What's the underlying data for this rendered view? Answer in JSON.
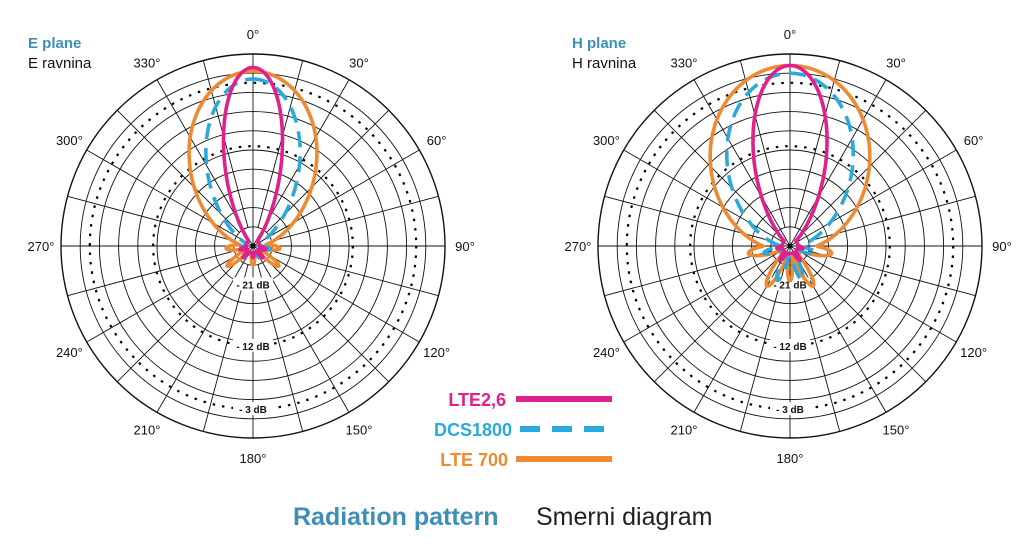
{
  "footer": {
    "title_en": "Radiation pattern",
    "title_sl": "Smerni diagram"
  },
  "colors": {
    "accent": "#3d8fb8",
    "lte26": "#e0208c",
    "dcs1800": "#2aa9dc",
    "lte700": "#ee8a32",
    "grid": "#111111",
    "text": "#111111"
  },
  "chart_data": [
    {
      "type": "polar",
      "title": "E plane",
      "subtitle": "E ravnina",
      "angle_ticks": [
        0,
        30,
        60,
        90,
        120,
        150,
        180,
        210,
        240,
        270,
        300,
        330
      ],
      "angle_labels": [
        "0°",
        "30°",
        "60°",
        "90°",
        "120°",
        "150°",
        "180°",
        "210°",
        "240°",
        "270°",
        "300°",
        "330°"
      ],
      "radial_rings": 10,
      "db_rings": [
        {
          "label": "- 3 dB",
          "level": 0.85,
          "dotted": true
        },
        {
          "label": "- 12 dB",
          "level": 0.52,
          "dotted": true
        },
        {
          "label": "- 21 dB",
          "level": 0.2,
          "dotted": false
        }
      ],
      "series": [
        {
          "name": "LTE 700",
          "style": "solid",
          "color": "#ee8a32",
          "main_lobe": {
            "peak": 0.91,
            "half_width_deg": 56,
            "exp": 1.0
          },
          "back_lobes": [
            {
              "dir": 95,
              "amp": 0.14,
              "w": 13
            },
            {
              "dir": 265,
              "amp": 0.14,
              "w": 13
            },
            {
              "dir": 128,
              "amp": 0.17,
              "w": 10
            },
            {
              "dir": 232,
              "amp": 0.17,
              "w": 10
            },
            {
              "dir": 180,
              "amp": 0.1,
              "w": 12
            }
          ],
          "floor": 0.045
        },
        {
          "name": "DCS1800",
          "style": "dashed",
          "color": "#2aa9dc",
          "main_lobe": {
            "peak": 0.87,
            "half_width_deg": 42,
            "exp": 1.0
          },
          "back_lobes": [
            {
              "dir": 100,
              "amp": 0.09,
              "w": 12
            },
            {
              "dir": 260,
              "amp": 0.09,
              "w": 12
            },
            {
              "dir": 150,
              "amp": 0.07,
              "w": 12
            },
            {
              "dir": 210,
              "amp": 0.07,
              "w": 12
            }
          ],
          "floor": 0.04
        },
        {
          "name": "LTE2,6",
          "style": "solid",
          "color": "#e0208c",
          "main_lobe": {
            "peak": 0.93,
            "half_width_deg": 24,
            "exp": 1.0
          },
          "back_lobes": [
            {
              "dir": 105,
              "amp": 0.07,
              "w": 12
            },
            {
              "dir": 255,
              "amp": 0.07,
              "w": 12
            },
            {
              "dir": 140,
              "amp": 0.08,
              "w": 10
            },
            {
              "dir": 220,
              "amp": 0.08,
              "w": 10
            },
            {
              "dir": 180,
              "amp": 0.06,
              "w": 10
            }
          ],
          "floor": 0.035
        }
      ]
    },
    {
      "type": "polar",
      "title": "H plane",
      "subtitle": "H ravnina",
      "angle_ticks": [
        0,
        30,
        60,
        90,
        120,
        150,
        180,
        210,
        240,
        270,
        300,
        330
      ],
      "angle_labels": [
        "0°",
        "30°",
        "60°",
        "90°",
        "120°",
        "150°",
        "180°",
        "210°",
        "240°",
        "270°",
        "300°",
        "330°"
      ],
      "radial_rings": 10,
      "db_rings": [
        {
          "label": "- 3 dB",
          "level": 0.85,
          "dotted": true
        },
        {
          "label": "- 12 dB",
          "level": 0.52,
          "dotted": true
        },
        {
          "label": "- 21 dB",
          "level": 0.2,
          "dotted": false
        }
      ],
      "series": [
        {
          "name": "LTE 700",
          "style": "solid",
          "color": "#ee8a32",
          "main_lobe": {
            "peak": 0.94,
            "half_width_deg": 70,
            "exp": 1.0
          },
          "back_lobes": [
            {
              "dir": 100,
              "amp": 0.22,
              "w": 14
            },
            {
              "dir": 260,
              "amp": 0.22,
              "w": 14
            },
            {
              "dir": 150,
              "amp": 0.24,
              "w": 12
            },
            {
              "dir": 210,
              "amp": 0.24,
              "w": 12
            },
            {
              "dir": 180,
              "amp": 0.18,
              "w": 10
            }
          ],
          "floor": 0.06
        },
        {
          "name": "DCS1800",
          "style": "dashed",
          "color": "#2aa9dc",
          "main_lobe": {
            "peak": 0.9,
            "half_width_deg": 56,
            "exp": 1.0
          },
          "back_lobes": [
            {
              "dir": 105,
              "amp": 0.14,
              "w": 12
            },
            {
              "dir": 255,
              "amp": 0.14,
              "w": 12
            },
            {
              "dir": 160,
              "amp": 0.19,
              "w": 11
            },
            {
              "dir": 200,
              "amp": 0.19,
              "w": 11
            }
          ],
          "floor": 0.05
        },
        {
          "name": "LTE2,6",
          "style": "solid",
          "color": "#e0208c",
          "main_lobe": {
            "peak": 0.94,
            "half_width_deg": 30,
            "exp": 1.0
          },
          "back_lobes": [
            {
              "dir": 100,
              "amp": 0.07,
              "w": 12
            },
            {
              "dir": 260,
              "amp": 0.07,
              "w": 12
            },
            {
              "dir": 145,
              "amp": 0.09,
              "w": 11
            },
            {
              "dir": 215,
              "amp": 0.09,
              "w": 11
            }
          ],
          "floor": 0.04
        }
      ]
    }
  ],
  "legend": [
    {
      "label": "LTE2,6",
      "color": "#e0208c",
      "style": "solid"
    },
    {
      "label": "DCS1800",
      "color": "#2aa9dc",
      "style": "dashed"
    },
    {
      "label": "LTE 700",
      "color": "#ee8a32",
      "style": "solid"
    }
  ]
}
